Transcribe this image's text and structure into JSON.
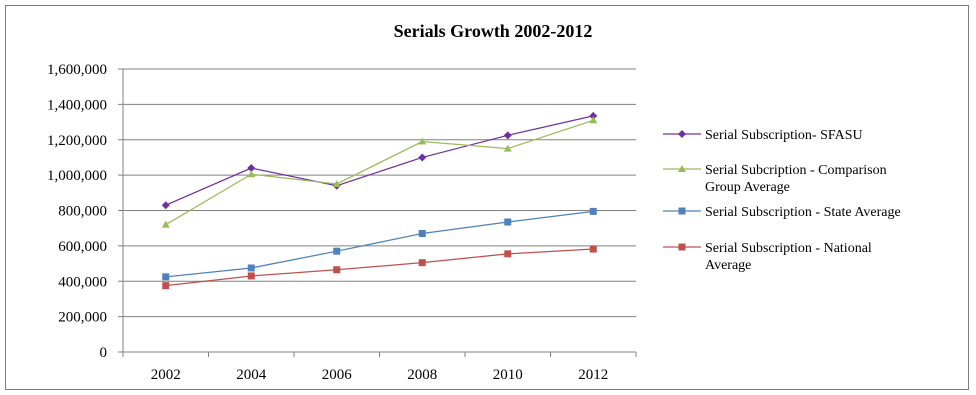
{
  "chart_data": {
    "type": "line",
    "title": "Serials Growth  2002-2012",
    "categories": [
      "2002",
      "2004",
      "2006",
      "2008",
      "2010",
      "2012"
    ],
    "ylim": [
      0,
      1600000
    ],
    "yticks": [
      0,
      200000,
      400000,
      600000,
      800000,
      1000000,
      1200000,
      1400000,
      1600000
    ],
    "ytick_labels": [
      "0",
      "200,000",
      "400,000",
      "600,000",
      "800,000",
      "1,000,000",
      "1,200,000",
      "1,400,000",
      "1,600,000"
    ],
    "grid": true,
    "legend_position": "right",
    "series": [
      {
        "name": "Serial Subscription- SFASU",
        "legend_lines": [
          "Serial Subscription- SFASU"
        ],
        "color": "#7030a0",
        "marker": "diamond",
        "values": [
          830000,
          1040000,
          940000,
          1100000,
          1225000,
          1335000
        ]
      },
      {
        "name": "Serial Subcription - Comparison Group Average",
        "legend_lines": [
          "Serial Subcription - Comparison",
          "Group Average"
        ],
        "color": "#9bbb59",
        "marker": "triangle",
        "values": [
          720000,
          1005000,
          950000,
          1190000,
          1150000,
          1310000
        ]
      },
      {
        "name": "Serial Subscription - State Average",
        "legend_lines": [
          "Serial Subscription - State Average"
        ],
        "color": "#4f81bd",
        "marker": "square",
        "values": [
          425000,
          475000,
          570000,
          670000,
          735000,
          795000
        ]
      },
      {
        "name": "Serial Subscription - National Average",
        "legend_lines": [
          "Serial Subscription - National",
          "Average"
        ],
        "color": "#c0504d",
        "marker": "square",
        "values": [
          375000,
          430000,
          465000,
          505000,
          555000,
          582000
        ]
      }
    ]
  }
}
